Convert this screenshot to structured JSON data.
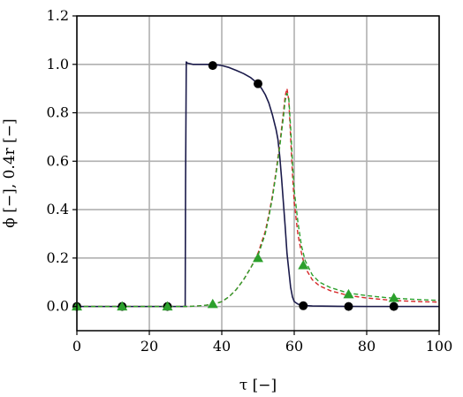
{
  "chart_data": {
    "type": "line",
    "xlabel": "τ [−]",
    "ylabel": "ϕ [−], 0.4r [−]",
    "xlim": [
      0,
      100
    ],
    "ylim": [
      -0.1,
      1.2
    ],
    "xticks": [
      0,
      20,
      40,
      60,
      80,
      100
    ],
    "xtick_labels": [
      "0",
      "20",
      "40",
      "60",
      "80",
      "100"
    ],
    "yticks": [
      0.0,
      0.2,
      0.4,
      0.6,
      0.8,
      1.0,
      1.2
    ],
    "ytick_labels": [
      "0.0",
      "0.2",
      "0.4",
      "0.6",
      "0.8",
      "1.0",
      "1.2"
    ],
    "grid": true,
    "series": [
      {
        "style": "solid",
        "color": "#1a1a4a",
        "x": [
          0,
          29.9,
          30.0,
          30.2,
          30.5,
          32,
          34,
          36,
          38,
          40,
          42,
          44,
          46,
          48,
          50,
          51,
          52,
          53,
          54,
          55,
          55.5,
          56,
          56.5,
          57,
          57.5,
          58,
          58.5,
          59,
          59.5,
          60,
          61,
          62,
          63,
          65,
          70,
          80,
          90,
          100
        ],
        "y": [
          0,
          0,
          0.5,
          1.01,
          1.005,
          1.0,
          1.0,
          1.0,
          0.999,
          0.995,
          0.987,
          0.975,
          0.962,
          0.945,
          0.92,
          0.9,
          0.875,
          0.84,
          0.79,
          0.73,
          0.69,
          0.62,
          0.53,
          0.43,
          0.33,
          0.22,
          0.15,
          0.08,
          0.04,
          0.02,
          0.01,
          0.006,
          0.004,
          0.002,
          0.001,
          0.0,
          0.0,
          0.0
        ]
      },
      {
        "style": "dashed",
        "color": "#d62728",
        "x": [
          0,
          30,
          32,
          35,
          38,
          40,
          42,
          44,
          46,
          48,
          50,
          52,
          53,
          54,
          55,
          56,
          57,
          57.5,
          58,
          58.5,
          59,
          59.5,
          60,
          61,
          62,
          63,
          65,
          67,
          70,
          75,
          80,
          85,
          90,
          95,
          100
        ],
        "y": [
          0,
          0,
          0.001,
          0.004,
          0.01,
          0.02,
          0.04,
          0.07,
          0.11,
          0.16,
          0.22,
          0.31,
          0.38,
          0.46,
          0.56,
          0.67,
          0.8,
          0.87,
          0.9,
          0.85,
          0.7,
          0.55,
          0.43,
          0.3,
          0.22,
          0.16,
          0.11,
          0.085,
          0.065,
          0.045,
          0.035,
          0.028,
          0.023,
          0.02,
          0.018
        ]
      },
      {
        "style": "dashed",
        "color": "#2ca02c",
        "x": [
          0,
          30,
          32,
          35,
          38,
          40,
          42,
          44,
          46,
          48,
          50,
          52,
          53,
          54,
          55,
          56,
          57,
          57.5,
          58,
          58.5,
          59,
          59.5,
          60,
          61,
          62,
          63,
          65,
          67,
          70,
          75,
          80,
          85,
          90,
          95,
          100
        ],
        "y": [
          0,
          0,
          0.001,
          0.004,
          0.01,
          0.02,
          0.04,
          0.07,
          0.11,
          0.16,
          0.21,
          0.3,
          0.37,
          0.45,
          0.55,
          0.66,
          0.78,
          0.85,
          0.88,
          0.86,
          0.74,
          0.6,
          0.48,
          0.35,
          0.25,
          0.19,
          0.13,
          0.1,
          0.078,
          0.055,
          0.045,
          0.037,
          0.032,
          0.028,
          0.025
        ]
      },
      {
        "style": "markers",
        "marker": "circle",
        "color": "#000000",
        "x": [
          0,
          12.5,
          25,
          37.5,
          50,
          62.5,
          75,
          87.5
        ],
        "y": [
          0,
          0,
          0,
          0.995,
          0.92,
          0.003,
          0.0,
          0.0
        ]
      },
      {
        "style": "markers",
        "marker": "triangle",
        "color": "#2ca02c",
        "x": [
          0,
          12.5,
          25,
          37.5,
          50,
          62.5,
          75,
          87.5
        ],
        "y": [
          0,
          0,
          0,
          0.01,
          0.2,
          0.17,
          0.05,
          0.035
        ]
      }
    ]
  }
}
